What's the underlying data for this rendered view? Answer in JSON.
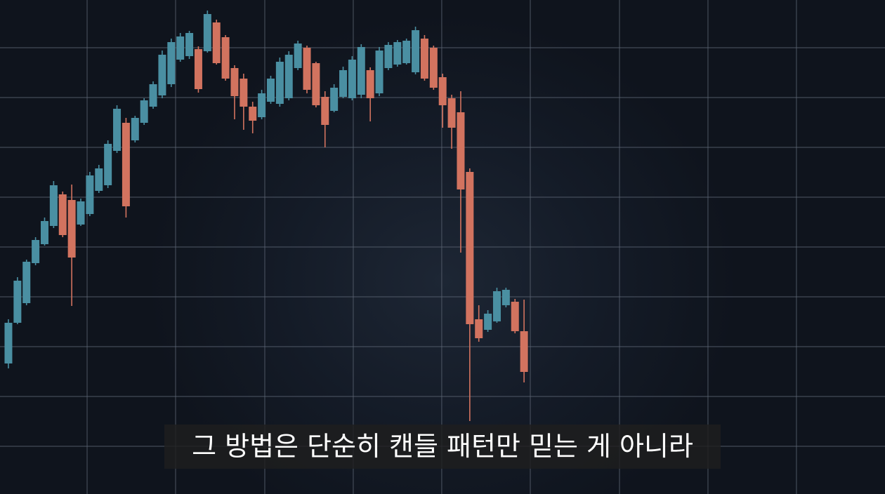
{
  "chart_data": {
    "type": "candlestick",
    "open": [
      189,
      247,
      275,
      332,
      359,
      385,
      430,
      422,
      387,
      402,
      435,
      443,
      492,
      532,
      507,
      532,
      555,
      571,
      587,
      622,
      627,
      637,
      634,
      675,
      654,
      610,
      595,
      555,
      540,
      562,
      559,
      567,
      610,
      639,
      617,
      569,
      549,
      569,
      567,
      572,
      607,
      574,
      610,
      615,
      617,
      604,
      652,
      639,
      597,
      567,
      547,
      462,
      252,
      237,
      249,
      272,
      277,
      235
    ],
    "high": [
      252,
      312,
      337,
      369,
      397,
      449,
      434,
      444,
      424,
      462,
      472,
      507,
      557,
      539,
      542,
      567,
      591,
      635,
      652,
      660,
      663,
      641,
      692,
      679,
      657,
      614,
      602,
      562,
      579,
      599,
      625,
      634,
      649,
      642,
      619,
      577,
      587,
      612,
      627,
      644,
      611,
      640,
      647,
      650,
      652,
      669,
      657,
      642,
      602,
      572,
      577,
      467,
      272,
      265,
      297,
      297,
      281,
      280
    ],
    "low": [
      182,
      245,
      272,
      329,
      357,
      382,
      369,
      271,
      385,
      399,
      432,
      439,
      489,
      397,
      504,
      529,
      552,
      567,
      583,
      619,
      623,
      575,
      632,
      615,
      592,
      537,
      522,
      517,
      537,
      559,
      555,
      564,
      607,
      574,
      554,
      497,
      547,
      567,
      564,
      567,
      534,
      570,
      607,
      612,
      615,
      601,
      592,
      579,
      525,
      495,
      347,
      107,
      220,
      234,
      247,
      269,
      232,
      162
    ],
    "close": [
      247,
      307,
      334,
      365,
      392,
      443,
      372,
      340,
      420,
      457,
      467,
      502,
      552,
      413,
      539,
      564,
      587,
      629,
      647,
      655,
      660,
      580,
      687,
      617,
      595,
      570,
      555,
      535,
      574,
      595,
      619,
      629,
      645,
      579,
      557,
      529,
      582,
      607,
      622,
      640,
      567,
      635,
      643,
      647,
      649,
      664,
      595,
      582,
      557,
      525,
      437,
      245,
      225,
      260,
      292,
      294,
      235,
      177
    ],
    "up_color": "#4a8fa2",
    "down_color": "#d2735f",
    "xlim": [
      -0.93,
      96.9
    ],
    "xticks": [
      8.7,
      18.48,
      28.34,
      38.12,
      47.9,
      57.69,
      67.55,
      77.33,
      87.11
    ],
    "ylim": [
      3,
      707
    ],
    "yticks": [
      71,
      142,
      213,
      284,
      355,
      426,
      497,
      568,
      639
    ],
    "grid": true
  },
  "caption": "그 방법은 단순히 캔들 패턴만 믿는 게 아니라"
}
